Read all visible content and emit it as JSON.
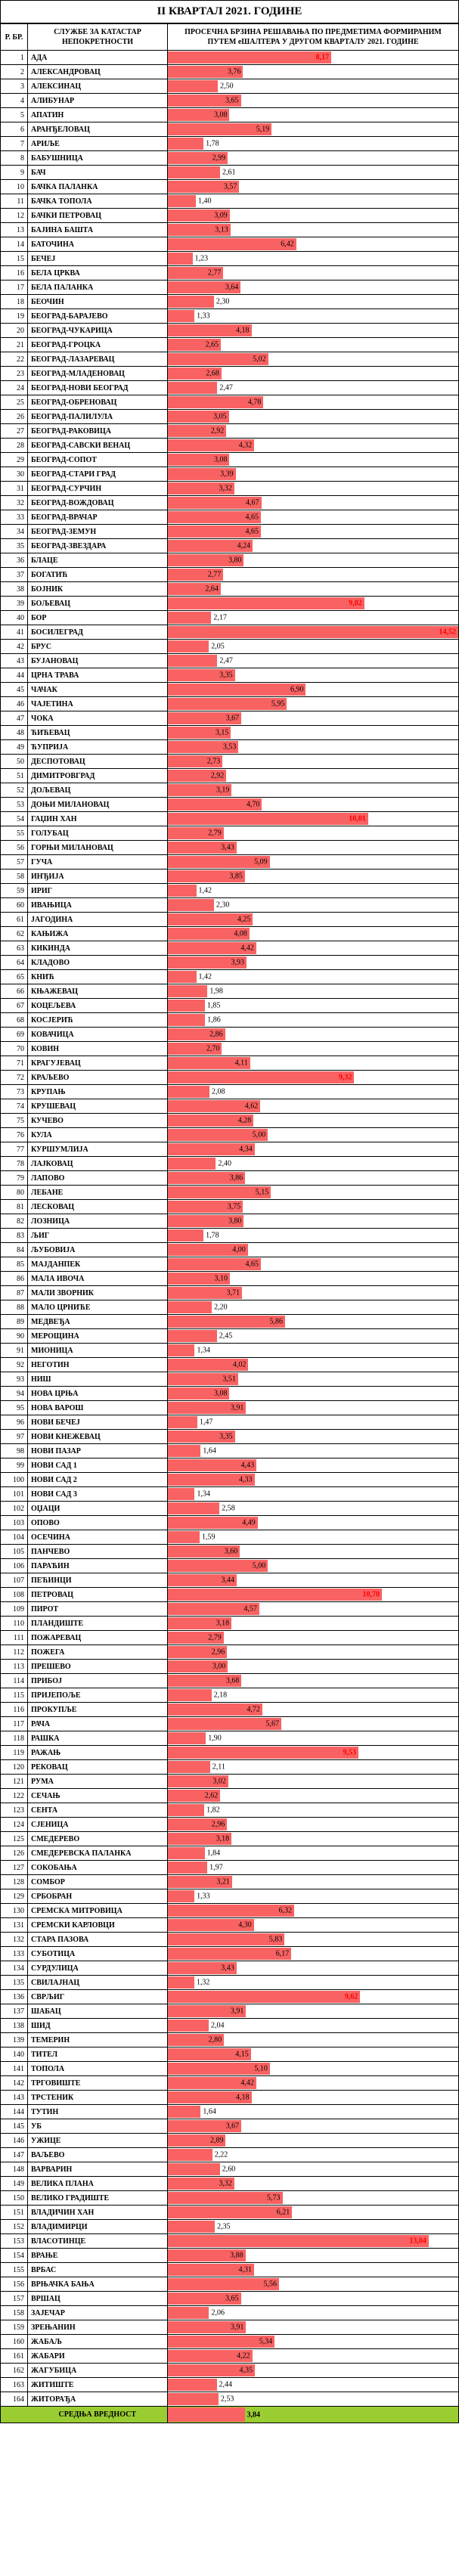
{
  "title": "II КВАРТАЛ 2021. ГОДИНЕ",
  "headers": {
    "col_num": "Р. БР.",
    "col_name": "СЛУЖБЕ ЗА КАТАСТАР НЕПОКРЕТНОСТИ",
    "col_val": "ПРОСЕЧНА БРЗИНА РЕШАВАЊА ПО ПРЕДМЕТИМА ФОРМИРАНИМ ПУТЕМ еШАЛТЕРА У ДРУГОМ  КВАРТАЛУ 2021. ГОДИНЕ"
  },
  "chart": {
    "max_value": 14.52,
    "bar_color": "#f96262",
    "highlight_color": "#ff0000",
    "highlight_threshold": 8.0,
    "footer_bg": "#9acd32"
  },
  "footer": {
    "label": "СРЕДЊА ВРЕДНОСТ",
    "value": 3.84,
    "value_text": "3,84"
  },
  "rows": [
    {
      "n": 1,
      "name": "АДА",
      "v": 8.17,
      "t": "8,17"
    },
    {
      "n": 2,
      "name": "АЛЕКСАНДРОВАЦ",
      "v": 3.76,
      "t": "3,76"
    },
    {
      "n": 3,
      "name": "АЛЕКСИНАЦ",
      "v": 2.5,
      "t": "2,50"
    },
    {
      "n": 4,
      "name": "АЛИБУНАР",
      "v": 3.65,
      "t": "3,65"
    },
    {
      "n": 5,
      "name": "АПАТИН",
      "v": 3.08,
      "t": "3,08"
    },
    {
      "n": 6,
      "name": "АРАНЂЕЛОВАЦ",
      "v": 5.19,
      "t": "5,19"
    },
    {
      "n": 7,
      "name": "АРИЉЕ",
      "v": 1.78,
      "t": "1,78"
    },
    {
      "n": 8,
      "name": "БАБУШНИЦА",
      "v": 2.99,
      "t": "2,99"
    },
    {
      "n": 9,
      "name": "БАЧ",
      "v": 2.61,
      "t": "2,61"
    },
    {
      "n": 10,
      "name": "БАЧКА ПАЛАНКА",
      "v": 3.57,
      "t": "3,57"
    },
    {
      "n": 11,
      "name": "БАЧКА ТОПОЛА",
      "v": 1.4,
      "t": "1,40"
    },
    {
      "n": 12,
      "name": "БАЧКИ ПЕТРОВАЦ",
      "v": 3.09,
      "t": "3,09"
    },
    {
      "n": 13,
      "name": "БАЈИНА БАШТА",
      "v": 3.13,
      "t": "3,13"
    },
    {
      "n": 14,
      "name": "БАТОЧИНА",
      "v": 6.42,
      "t": "6,42"
    },
    {
      "n": 15,
      "name": "БЕЧЕЈ",
      "v": 1.23,
      "t": "1,23"
    },
    {
      "n": 16,
      "name": "БЕЛА ЦРКВА",
      "v": 2.77,
      "t": "2,77"
    },
    {
      "n": 17,
      "name": "БЕЛА ПАЛАНКА",
      "v": 3.64,
      "t": "3,64"
    },
    {
      "n": 18,
      "name": "БЕОЧИН",
      "v": 2.3,
      "t": "2,30"
    },
    {
      "n": 19,
      "name": "БЕОГРАД-БАРАЈЕВО",
      "v": 1.33,
      "t": "1,33"
    },
    {
      "n": 20,
      "name": "БЕОГРАД-ЧУКАРИЦА",
      "v": 4.18,
      "t": "4,18"
    },
    {
      "n": 21,
      "name": "БЕОГРАД-ГРОЦКА",
      "v": 2.65,
      "t": "2,65"
    },
    {
      "n": 22,
      "name": "БЕОГРАД-ЛАЗАРЕВАЦ",
      "v": 5.02,
      "t": "5,02"
    },
    {
      "n": 23,
      "name": "БЕОГРАД-МЛАДЕНОВАЦ",
      "v": 2.68,
      "t": "2,68"
    },
    {
      "n": 24,
      "name": "БЕОГРАД-НОВИ БЕОГРАД",
      "v": 2.47,
      "t": "2,47"
    },
    {
      "n": 25,
      "name": "БЕОГРАД-ОБРЕНОВАЦ",
      "v": 4.78,
      "t": "4,78"
    },
    {
      "n": 26,
      "name": "БЕОГРАД-ПАЛИЛУЛА",
      "v": 3.05,
      "t": "3,05"
    },
    {
      "n": 27,
      "name": "БЕОГРАД-РАКОВИЦА",
      "v": 2.92,
      "t": "2,92"
    },
    {
      "n": 28,
      "name": "БЕОГРАД-САВСКИ ВЕНАЦ",
      "v": 4.32,
      "t": "4,32"
    },
    {
      "n": 29,
      "name": "БЕОГРАД-СОПОТ",
      "v": 3.08,
      "t": "3,08"
    },
    {
      "n": 30,
      "name": "БЕОГРАД-СТАРИ ГРАД",
      "v": 3.39,
      "t": "3,39"
    },
    {
      "n": 31,
      "name": "БЕОГРАД-СУРЧИН",
      "v": 3.32,
      "t": "3,32"
    },
    {
      "n": 32,
      "name": "БЕОГРАД-ВОЖДОВАЦ",
      "v": 4.67,
      "t": "4,67"
    },
    {
      "n": 33,
      "name": "БЕОГРАД-ВРАЧАР",
      "v": 4.65,
      "t": "4,65"
    },
    {
      "n": 34,
      "name": "БЕОГРАД-ЗЕМУН",
      "v": 4.65,
      "t": "4,65"
    },
    {
      "n": 35,
      "name": "БЕОГРАД-ЗВЕЗДАРА",
      "v": 4.24,
      "t": "4,24"
    },
    {
      "n": 36,
      "name": "БЛАЦЕ",
      "v": 3.8,
      "t": "3,80"
    },
    {
      "n": 37,
      "name": "БОГАТИЋ",
      "v": 2.77,
      "t": "2,77"
    },
    {
      "n": 38,
      "name": "БОЈНИК",
      "v": 2.64,
      "t": "2,64"
    },
    {
      "n": 39,
      "name": "БОЉЕВАЦ",
      "v": 9.82,
      "t": "9,82"
    },
    {
      "n": 40,
      "name": "БОР",
      "v": 2.17,
      "t": "2,17"
    },
    {
      "n": 41,
      "name": "БОСИЛЕГРАД",
      "v": 14.52,
      "t": "14,52"
    },
    {
      "n": 42,
      "name": "БРУС",
      "v": 2.05,
      "t": "2,05"
    },
    {
      "n": 43,
      "name": "БУЈАНОВАЦ",
      "v": 2.47,
      "t": "2,47"
    },
    {
      "n": 44,
      "name": "ЦРНА ТРАВА",
      "v": 3.35,
      "t": "3,35"
    },
    {
      "n": 45,
      "name": "ЧАЧАК",
      "v": 6.9,
      "t": "6,90"
    },
    {
      "n": 46,
      "name": "ЧАЈЕТИНА",
      "v": 5.95,
      "t": "5,95"
    },
    {
      "n": 47,
      "name": "ЧОКА",
      "v": 3.67,
      "t": "3,67"
    },
    {
      "n": 48,
      "name": "ЋИЋЕВАЦ",
      "v": 3.15,
      "t": "3,15"
    },
    {
      "n": 49,
      "name": "ЋУПРИЈА",
      "v": 3.53,
      "t": "3,53"
    },
    {
      "n": 50,
      "name": "ДЕСПОТОВАЦ",
      "v": 2.73,
      "t": "2,73"
    },
    {
      "n": 51,
      "name": "ДИМИТРОВГРАД",
      "v": 2.92,
      "t": "2,92"
    },
    {
      "n": 52,
      "name": "ДОЉЕВАЦ",
      "v": 3.19,
      "t": "3,19"
    },
    {
      "n": 53,
      "name": "ДОЊИ МИЛАНОВАЦ",
      "v": 4.7,
      "t": "4,70"
    },
    {
      "n": 54,
      "name": "ГАЏИН ХАН",
      "v": 10.01,
      "t": "10,01"
    },
    {
      "n": 55,
      "name": "ГОЛУБАЦ",
      "v": 2.79,
      "t": "2,79"
    },
    {
      "n": 56,
      "name": "ГОРЊИ МИЛАНОВАЦ",
      "v": 3.43,
      "t": "3,43"
    },
    {
      "n": 57,
      "name": "ГУЧА",
      "v": 5.09,
      "t": "5,09"
    },
    {
      "n": 58,
      "name": "ИНЂИЈА",
      "v": 3.85,
      "t": "3,85"
    },
    {
      "n": 59,
      "name": "ИРИГ",
      "v": 1.42,
      "t": "1,42"
    },
    {
      "n": 60,
      "name": "ИВАЊИЦА",
      "v": 2.3,
      "t": "2,30"
    },
    {
      "n": 61,
      "name": "ЈАГОДИНА",
      "v": 4.25,
      "t": "4,25"
    },
    {
      "n": 62,
      "name": "КАЊИЖА",
      "v": 4.08,
      "t": "4,08"
    },
    {
      "n": 63,
      "name": "КИКИНДА",
      "v": 4.42,
      "t": "4,42"
    },
    {
      "n": 64,
      "name": "КЛАДОВО",
      "v": 3.93,
      "t": "3,93"
    },
    {
      "n": 65,
      "name": "КНИЋ",
      "v": 1.42,
      "t": "1,42"
    },
    {
      "n": 66,
      "name": "КЊАЖЕВАЦ",
      "v": 1.98,
      "t": "1,98"
    },
    {
      "n": 67,
      "name": "КОЦЕЉЕВА",
      "v": 1.85,
      "t": "1,85"
    },
    {
      "n": 68,
      "name": "КОСЈЕРИЋ",
      "v": 1.86,
      "t": "1,86"
    },
    {
      "n": 69,
      "name": "КОВАЧИЦА",
      "v": 2.86,
      "t": "2,86"
    },
    {
      "n": 70,
      "name": "КОВИН",
      "v": 2.7,
      "t": "2,70"
    },
    {
      "n": 71,
      "name": "КРАГУЈЕВАЦ",
      "v": 4.11,
      "t": "4,11"
    },
    {
      "n": 72,
      "name": "КРАЉЕВО",
      "v": 9.32,
      "t": "9,32"
    },
    {
      "n": 73,
      "name": "КРУПАЊ",
      "v": 2.08,
      "t": "2,08"
    },
    {
      "n": 74,
      "name": "КРУШЕВАЦ",
      "v": 4.62,
      "t": "4,62"
    },
    {
      "n": 75,
      "name": "КУЧЕВО",
      "v": 4.28,
      "t": "4,28"
    },
    {
      "n": 76,
      "name": "КУЛА",
      "v": 5.0,
      "t": "5,00"
    },
    {
      "n": 77,
      "name": "КУРШУМЛИЈА",
      "v": 4.34,
      "t": "4,34"
    },
    {
      "n": 78,
      "name": "ЛАЈКОВАЦ",
      "v": 2.4,
      "t": "2,40"
    },
    {
      "n": 79,
      "name": "ЛАПОВО",
      "v": 3.86,
      "t": "3,86"
    },
    {
      "n": 80,
      "name": "ЛЕБАНЕ",
      "v": 5.15,
      "t": "5,15"
    },
    {
      "n": 81,
      "name": "ЛЕСКОВАЦ",
      "v": 3.75,
      "t": "3,75"
    },
    {
      "n": 82,
      "name": "ЛОЗНИЦА",
      "v": 3.8,
      "t": "3,80"
    },
    {
      "n": 83,
      "name": "ЉИГ",
      "v": 1.78,
      "t": "1,78"
    },
    {
      "n": 84,
      "name": "ЉУБОВИЈА",
      "v": 4.0,
      "t": "4,00"
    },
    {
      "n": 85,
      "name": "МАЈДАНПЕК",
      "v": 4.65,
      "t": "4,65"
    },
    {
      "n": 86,
      "name": "МАЛА ИВОЧА",
      "v": 3.1,
      "t": "3,10"
    },
    {
      "n": 87,
      "name": "МАЛИ ЗВОРНИК",
      "v": 3.71,
      "t": "3,71"
    },
    {
      "n": 88,
      "name": "МАЛО ЦРНИЋЕ",
      "v": 2.2,
      "t": "2,20"
    },
    {
      "n": 89,
      "name": "МЕДВЕЂА",
      "v": 5.86,
      "t": "5,86"
    },
    {
      "n": 90,
      "name": "МЕРОЩИНА",
      "v": 2.45,
      "t": "2,45"
    },
    {
      "n": 91,
      "name": "МИОНИЦА",
      "v": 1.34,
      "t": "1,34"
    },
    {
      "n": 92,
      "name": "НЕГОТИН",
      "v": 4.02,
      "t": "4,02"
    },
    {
      "n": 93,
      "name": "НИШ",
      "v": 3.51,
      "t": "3,51"
    },
    {
      "n": 94,
      "name": "НОВА ЦРЊА",
      "v": 3.08,
      "t": "3,08"
    },
    {
      "n": 95,
      "name": "НОВА ВАРОШ",
      "v": 3.91,
      "t": "3,91"
    },
    {
      "n": 96,
      "name": "НОВИ БЕЧЕЈ",
      "v": 1.47,
      "t": "1,47"
    },
    {
      "n": 97,
      "name": "НОВИ КНЕЖЕВАЦ",
      "v": 3.35,
      "t": "3,35"
    },
    {
      "n": 98,
      "name": "НОВИ ПАЗАР",
      "v": 1.64,
      "t": "1,64"
    },
    {
      "n": 99,
      "name": "НОВИ САД 1",
      "v": 4.43,
      "t": "4,43"
    },
    {
      "n": 100,
      "name": "НОВИ САД 2",
      "v": 4.33,
      "t": "4,33"
    },
    {
      "n": 101,
      "name": "НОВИ САД 3",
      "v": 1.34,
      "t": "1,34"
    },
    {
      "n": 102,
      "name": "ОЏАЦИ",
      "v": 2.58,
      "t": "2,58"
    },
    {
      "n": 103,
      "name": "ОПОВО",
      "v": 4.49,
      "t": "4,49"
    },
    {
      "n": 104,
      "name": "ОСЕЧИНА",
      "v": 1.59,
      "t": "1,59"
    },
    {
      "n": 105,
      "name": "ПАНЧЕВО",
      "v": 3.6,
      "t": "3,60"
    },
    {
      "n": 106,
      "name": "ПАРАЋИН",
      "v": 5.0,
      "t": "5,00"
    },
    {
      "n": 107,
      "name": "ПЕЋИНЦИ",
      "v": 3.44,
      "t": "3,44"
    },
    {
      "n": 108,
      "name": "ПЕТРОВАЦ",
      "v": 10.7,
      "t": "10,70"
    },
    {
      "n": 109,
      "name": "ПИРОТ",
      "v": 4.57,
      "t": "4,57"
    },
    {
      "n": 110,
      "name": "ПЛАНДИШТЕ",
      "v": 3.18,
      "t": "3,18"
    },
    {
      "n": 111,
      "name": "ПОЖАРЕВАЦ",
      "v": 2.79,
      "t": "2,79"
    },
    {
      "n": 112,
      "name": "ПОЖЕГА",
      "v": 2.96,
      "t": "2,96"
    },
    {
      "n": 113,
      "name": "ПРЕШЕВО",
      "v": 3.0,
      "t": "3,00"
    },
    {
      "n": 114,
      "name": "ПРИБОЈ",
      "v": 3.68,
      "t": "3,68"
    },
    {
      "n": 115,
      "name": "ПРИЈЕПОЉЕ",
      "v": 2.18,
      "t": "2,18"
    },
    {
      "n": 116,
      "name": "ПРОКУПЉЕ",
      "v": 4.72,
      "t": "4,72"
    },
    {
      "n": 117,
      "name": "РАЧА",
      "v": 5.67,
      "t": "5,67"
    },
    {
      "n": 118,
      "name": "РАШКА",
      "v": 1.9,
      "t": "1,90"
    },
    {
      "n": 119,
      "name": "РАЖАЊ",
      "v": 9.53,
      "t": "9,53"
    },
    {
      "n": 120,
      "name": "РЕКОВАЦ",
      "v": 2.11,
      "t": "2,11"
    },
    {
      "n": 121,
      "name": "РУМА",
      "v": 3.02,
      "t": "3,02"
    },
    {
      "n": 122,
      "name": "СЕЧАЊ",
      "v": 2.62,
      "t": "2,62"
    },
    {
      "n": 123,
      "name": "СЕНТА",
      "v": 1.82,
      "t": "1,82"
    },
    {
      "n": 124,
      "name": "СЈЕНИЦА",
      "v": 2.96,
      "t": "2,96"
    },
    {
      "n": 125,
      "name": "СМЕДЕРЕВО",
      "v": 3.18,
      "t": "3,18"
    },
    {
      "n": 126,
      "name": "СМЕДЕРЕВСКА ПАЛАНКА",
      "v": 1.84,
      "t": "1,84"
    },
    {
      "n": 127,
      "name": "СОКОБАЊА",
      "v": 1.97,
      "t": "1,97"
    },
    {
      "n": 128,
      "name": "СОМБОР",
      "v": 3.21,
      "t": "3,21"
    },
    {
      "n": 129,
      "name": "СРБОБРАН",
      "v": 1.33,
      "t": "1,33"
    },
    {
      "n": 130,
      "name": "СРЕМСКА МИТРОВИЦА",
      "v": 6.32,
      "t": "6,32"
    },
    {
      "n": 131,
      "name": "СРЕМСКИ КАРЛОВЦИ",
      "v": 4.3,
      "t": "4,30"
    },
    {
      "n": 132,
      "name": "СТАРА ПАЗОВА",
      "v": 5.83,
      "t": "5,83"
    },
    {
      "n": 133,
      "name": "СУБОТИЦА",
      "v": 6.17,
      "t": "6,17"
    },
    {
      "n": 134,
      "name": "СУРДУЛИЦА",
      "v": 3.43,
      "t": "3,43"
    },
    {
      "n": 135,
      "name": "СВИЛАЈНАЦ",
      "v": 1.32,
      "t": "1,32"
    },
    {
      "n": 136,
      "name": "СВРЉИГ",
      "v": 9.62,
      "t": "9,62"
    },
    {
      "n": 137,
      "name": "ШАБАЦ",
      "v": 3.91,
      "t": "3,91"
    },
    {
      "n": 138,
      "name": "ШИД",
      "v": 2.04,
      "t": "2,04"
    },
    {
      "n": 139,
      "name": "ТЕМЕРИН",
      "v": 2.8,
      "t": "2,80"
    },
    {
      "n": 140,
      "name": "ТИТЕЛ",
      "v": 4.15,
      "t": "4,15"
    },
    {
      "n": 141,
      "name": "ТОПОЛА",
      "v": 5.1,
      "t": "5,10"
    },
    {
      "n": 142,
      "name": "ТРГОВИШТЕ",
      "v": 4.42,
      "t": "4,42"
    },
    {
      "n": 143,
      "name": "ТРСТЕНИК",
      "v": 4.18,
      "t": "4,18"
    },
    {
      "n": 144,
      "name": "ТУТИН",
      "v": 1.64,
      "t": "1,64"
    },
    {
      "n": 145,
      "name": "УБ",
      "v": 3.67,
      "t": "3,67"
    },
    {
      "n": 146,
      "name": "УЖИЦЕ",
      "v": 2.89,
      "t": "2,89"
    },
    {
      "n": 147,
      "name": "ВАЉЕВО",
      "v": 2.22,
      "t": "2,22"
    },
    {
      "n": 148,
      "name": "ВАРВАРИН",
      "v": 2.6,
      "t": "2,60"
    },
    {
      "n": 149,
      "name": "ВЕЛИКА ПЛАНА",
      "v": 3.32,
      "t": "3,32"
    },
    {
      "n": 150,
      "name": "ВЕЛИКО ГРАДИШТЕ",
      "v": 5.73,
      "t": "5,73"
    },
    {
      "n": 151,
      "name": "ВЛАДИЧИН ХАН",
      "v": 6.21,
      "t": "6,21"
    },
    {
      "n": 152,
      "name": "ВЛАДИМИРЦИ",
      "v": 2.35,
      "t": "2,35"
    },
    {
      "n": 153,
      "name": "ВЛАСОТИНЦЕ",
      "v": 13.04,
      "t": "13,04"
    },
    {
      "n": 154,
      "name": "ВРАЊЕ",
      "v": 3.88,
      "t": "3,88"
    },
    {
      "n": 155,
      "name": "ВРБАС",
      "v": 4.31,
      "t": "4,31"
    },
    {
      "n": 156,
      "name": "ВРЊАЧКА БАЊА",
      "v": 5.56,
      "t": "5,56"
    },
    {
      "n": 157,
      "name": "ВРШАЦ",
      "v": 3.65,
      "t": "3,65"
    },
    {
      "n": 158,
      "name": "ЗАЈЕЧАР",
      "v": 2.06,
      "t": "2,06"
    },
    {
      "n": 159,
      "name": "ЗРЕЊАНИН",
      "v": 3.91,
      "t": "3,91"
    },
    {
      "n": 160,
      "name": "ЖАБАЉ",
      "v": 5.34,
      "t": "5,34"
    },
    {
      "n": 161,
      "name": "ЖАБАРИ",
      "v": 4.22,
      "t": "4,22"
    },
    {
      "n": 162,
      "name": "ЖАГУБИЦА",
      "v": 4.35,
      "t": "4,35"
    },
    {
      "n": 163,
      "name": "ЖИТИШТЕ",
      "v": 2.44,
      "t": "2,44"
    },
    {
      "n": 164,
      "name": "ЖИТОРАЂА",
      "v": 2.53,
      "t": "2,53"
    }
  ]
}
